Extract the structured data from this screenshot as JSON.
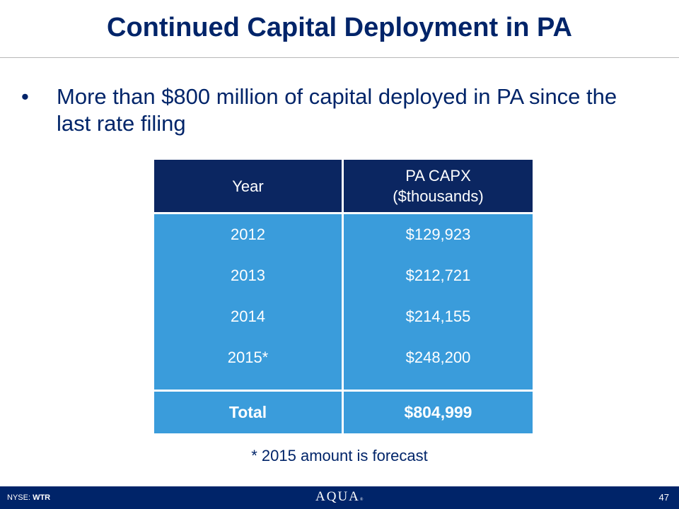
{
  "slide": {
    "title": "Continued Capital Deployment in PA",
    "bullet_marker": "•",
    "bullet_text": "More than $800 million of capital deployed in PA since the last rate filing"
  },
  "table": {
    "headers": {
      "year": "Year",
      "capx_line1": "PA CAPX",
      "capx_line2": "($thousands)"
    },
    "rows": [
      {
        "year": "2012",
        "capx": "$129,923"
      },
      {
        "year": "2013",
        "capx": "$212,721"
      },
      {
        "year": "2014",
        "capx": "$214,155"
      },
      {
        "year": "2015*",
        "capx": "$248,200"
      }
    ],
    "total": {
      "label": "Total",
      "value": "$804,999"
    }
  },
  "footnote": "* 2015 amount is forecast",
  "footer": {
    "exchange": "NYSE:",
    "ticker": "WTR",
    "logo_text": "AQUA",
    "logo_mark": "®",
    "page_number": "47"
  },
  "colors": {
    "title": "#002469",
    "header_fill": "#0b2661",
    "body_fill": "#3a9cdb",
    "footer_bar": "#002469"
  }
}
